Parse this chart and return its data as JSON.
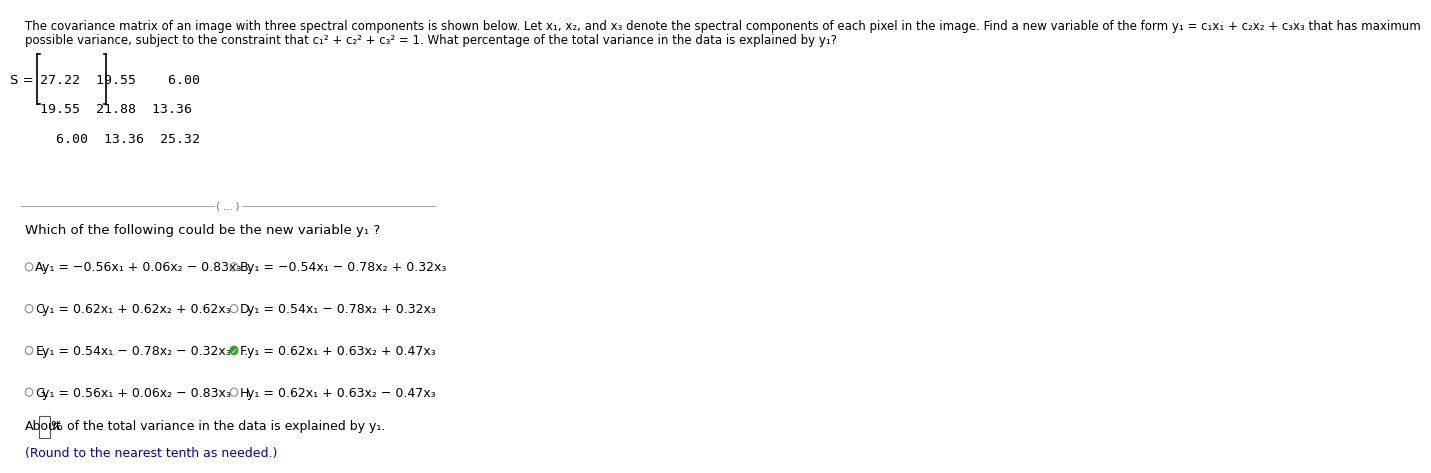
{
  "bg_color": "#ffffff",
  "header_line1": "The covariance matrix of an image with three spectral components is shown below. Let x₁, x₂, and x₃ denote the spectral components of each pixel in the image. Find a new variable of the form y₁ = c₁x₁ + c₂x₂ + c₃x₃ that has maximum",
  "header_line2": "possible variance, subject to the constraint that c₁² + c₂² + c₃² = 1. What percentage of the total variance in the data is explained by y₁?",
  "matrix_label": "S =",
  "matrix_rows": [
    "27.22  19.55    6.00",
    "19.55  21.88  13.36",
    "  6.00  13.36  25.32"
  ],
  "question": "Which of the following could be the new variable y₁ ?",
  "options": [
    {
      "label": "A.",
      "text": "y₁ = −0.56x₁ + 0.06x₂ − 0.83x₃",
      "selected": false,
      "col": 0
    },
    {
      "label": "B.",
      "text": "y₁ = −0.54x₁ − 0.78x₂ + 0.32x₃",
      "selected": false,
      "col": 1
    },
    {
      "label": "C.",
      "text": "y₁ = 0.62x₁ + 0.62x₂ + 0.62x₃",
      "selected": false,
      "col": 0
    },
    {
      "label": "D.",
      "text": "y₁ = 0.54x₁ − 0.78x₂ + 0.32x₃",
      "selected": false,
      "col": 1
    },
    {
      "label": "E.",
      "text": "y₁ = 0.54x₁ − 0.78x₂ − 0.32x₃",
      "selected": false,
      "col": 0
    },
    {
      "label": "F.",
      "text": "y₁ = 0.62x₁ + 0.63x₂ + 0.47x₃",
      "selected": true,
      "col": 1
    },
    {
      "label": "G.",
      "text": "y₁ = 0.56x₁ + 0.06x₂ − 0.83x₃",
      "selected": false,
      "col": 0
    },
    {
      "label": "H.",
      "text": "y₁ = 0.62x₁ + 0.63x₂ − 0.47x₃",
      "selected": false,
      "col": 1
    }
  ],
  "footer_text": "About",
  "footer_text2": "% of the total variance in the data is explained by y₁.",
  "footer_note": "(Round to the nearest tenth as needed.)",
  "footer_note_color": "#0000cc",
  "header_fontsize": 8.5,
  "matrix_fontsize": 9.5,
  "question_fontsize": 9.5,
  "option_fontsize": 9.0,
  "footer_fontsize": 9.0
}
